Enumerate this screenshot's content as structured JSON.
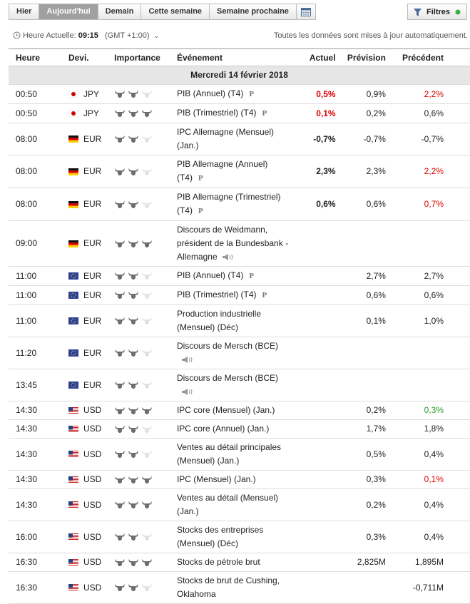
{
  "toolbar": {
    "tabs": [
      "Hier",
      "Aujourd'hui",
      "Demain",
      "Cette semaine",
      "Semaine prochaine"
    ],
    "active_tab": 1,
    "filters": "Filtres"
  },
  "status": {
    "label": "Heure Actuelle:",
    "time": "09:15",
    "zone": "(GMT +1:00)",
    "note": "Toutes les données sont mises à jour automatiquement."
  },
  "table": {
    "columns": [
      "Heure",
      "Devi.",
      "Importance",
      "Événement",
      "Actuel",
      "Prévision",
      "Précédent"
    ],
    "date": "Mercredi 14 février 2018",
    "rows": [
      {
        "time": "00:50",
        "flag": "jp",
        "currency": "JPY",
        "importance": 2,
        "event": "PIB (Annuel) (T4)",
        "badge": "P",
        "actual": "0,5%",
        "actual_color": "#e00000",
        "forecast": "0,9%",
        "previous": "2,2%",
        "previous_color": "#e00000"
      },
      {
        "time": "00:50",
        "flag": "jp",
        "currency": "JPY",
        "importance": 3,
        "event": "PIB (Trimestriel) (T4)",
        "badge": "P",
        "actual": "0,1%",
        "actual_color": "#e00000",
        "forecast": "0,2%",
        "previous": "0,6%"
      },
      {
        "time": "08:00",
        "flag": "de",
        "currency": "EUR",
        "importance": 2,
        "event": "IPC Allemagne (Mensuel) (Jan.)",
        "actual": "-0,7%",
        "forecast": "-0,7%",
        "previous": "-0,7%"
      },
      {
        "time": "08:00",
        "flag": "de",
        "currency": "EUR",
        "importance": 2,
        "event": "PIB Allemagne (Annuel) (T4)",
        "badge": "P",
        "actual": "2,3%",
        "forecast": "2,3%",
        "previous": "2,2%",
        "previous_color": "#e00000"
      },
      {
        "time": "08:00",
        "flag": "de",
        "currency": "EUR",
        "importance": 2,
        "event": "PIB Allemagne (Trimestriel) (T4)",
        "badge": "P",
        "actual": "0,6%",
        "forecast": "0,6%",
        "previous": "0,7%",
        "previous_color": "#e00000"
      },
      {
        "time": "09:00",
        "flag": "de",
        "currency": "EUR",
        "importance": 3,
        "event": "Discours de Weidmann, président de la Bundesbank - Allemagne",
        "speech": true
      },
      {
        "time": "11:00",
        "flag": "eu",
        "currency": "EUR",
        "importance": 2,
        "event": "PIB (Annuel) (T4)",
        "badge": "P",
        "forecast": "2,7%",
        "previous": "2,7%"
      },
      {
        "time": "11:00",
        "flag": "eu",
        "currency": "EUR",
        "importance": 2,
        "event": "PIB (Trimestriel) (T4)",
        "badge": "P",
        "forecast": "0,6%",
        "previous": "0,6%"
      },
      {
        "time": "11:00",
        "flag": "eu",
        "currency": "EUR",
        "importance": 2,
        "event": "Production industrielle (Mensuel) (Déc)",
        "forecast": "0,1%",
        "previous": "1,0%"
      },
      {
        "time": "11:20",
        "flag": "eu",
        "currency": "EUR",
        "importance": 2,
        "event": "Discours de Mersch (BCE)",
        "speech": true
      },
      {
        "time": "13:45",
        "flag": "eu",
        "currency": "EUR",
        "importance": 2,
        "event": "Discours de Mersch (BCE)",
        "speech": true
      },
      {
        "time": "14:30",
        "flag": "us",
        "currency": "USD",
        "importance": 3,
        "event": "IPC core (Mensuel) (Jan.)",
        "forecast": "0,2%",
        "previous": "0,3%",
        "previous_color": "#2a9d2a"
      },
      {
        "time": "14:30",
        "flag": "us",
        "currency": "USD",
        "importance": 2,
        "event": "IPC core (Annuel) (Jan.)",
        "forecast": "1,7%",
        "previous": "1,8%"
      },
      {
        "time": "14:30",
        "flag": "us",
        "currency": "USD",
        "importance": 2,
        "event": "Ventes au détail principales (Mensuel) (Jan.)",
        "forecast": "0,5%",
        "previous": "0,4%"
      },
      {
        "time": "14:30",
        "flag": "us",
        "currency": "USD",
        "importance": 3,
        "event": "IPC (Mensuel) (Jan.)",
        "forecast": "0,3%",
        "previous": "0,1%",
        "previous_color": "#e00000"
      },
      {
        "time": "14:30",
        "flag": "us",
        "currency": "USD",
        "importance": 3,
        "event": "Ventes au détail (Mensuel) (Jan.)",
        "forecast": "0,2%",
        "previous": "0,4%"
      },
      {
        "time": "16:00",
        "flag": "us",
        "currency": "USD",
        "importance": 2,
        "event": "Stocks des entreprises (Mensuel) (Déc)",
        "forecast": "0,3%",
        "previous": "0,4%"
      },
      {
        "time": "16:30",
        "flag": "us",
        "currency": "USD",
        "importance": 3,
        "event": "Stocks de pétrole brut",
        "forecast": "2,825M",
        "previous": "1,895M"
      },
      {
        "time": "16:30",
        "flag": "us",
        "currency": "USD",
        "importance": 2,
        "event": "Stocks de brut de Cushing, Oklahoma",
        "previous": "-0,711M"
      }
    ]
  }
}
